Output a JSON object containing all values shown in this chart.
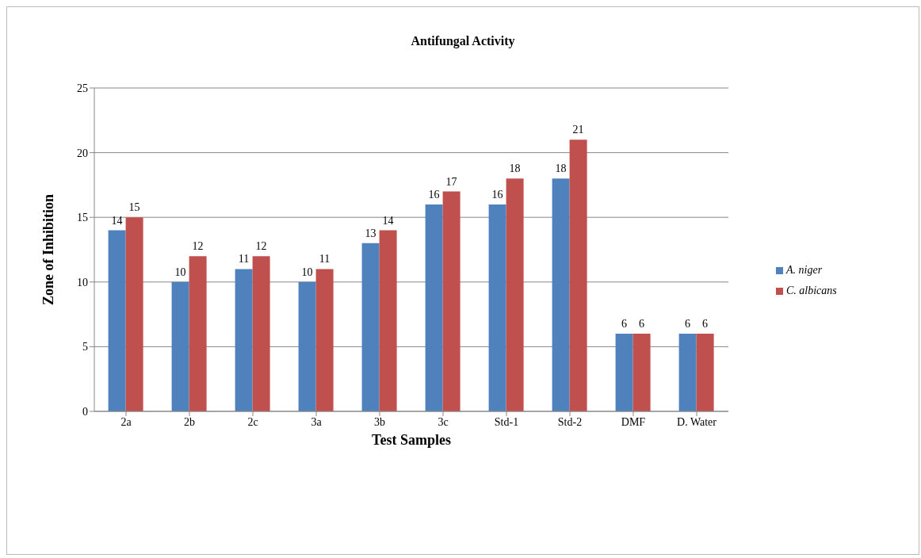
{
  "chart_data": {
    "type": "bar",
    "title": "Antifungal Activity",
    "xlabel": "Test Samples",
    "ylabel": "Zone of Inhibition",
    "categories": [
      "2a",
      "2b",
      "2c",
      "3a",
      "3b",
      "3c",
      "Std-1",
      "Std-2",
      "DMF",
      "D. Water"
    ],
    "series": [
      {
        "name": "A. niger",
        "color": "#4f81bd",
        "values": [
          14,
          10,
          11,
          10,
          13,
          16,
          16,
          18,
          6,
          6
        ]
      },
      {
        "name": "C. albicans",
        "color": "#c0504d",
        "values": [
          15,
          12,
          12,
          11,
          14,
          17,
          18,
          21,
          6,
          6
        ]
      }
    ],
    "ylim": [
      0,
      25
    ],
    "yticks": [
      0,
      5,
      10,
      15,
      20,
      25
    ],
    "grid": "y",
    "legend": "right",
    "data_labels": true
  }
}
